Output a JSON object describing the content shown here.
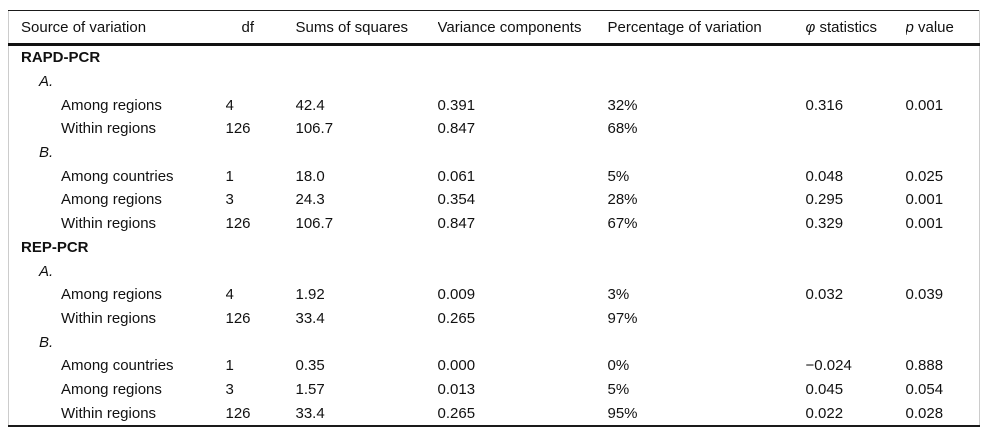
{
  "colors": {
    "background": "#ffffff",
    "text": "#111111",
    "rule": "#1a1a1a",
    "frame": "#cccccc"
  },
  "table": {
    "columns": [
      {
        "label": "Source of variation"
      },
      {
        "label": "df"
      },
      {
        "label": "Sums of squares"
      },
      {
        "label": "Variance components"
      },
      {
        "label": "Percentage of variation"
      },
      {
        "symbol": "φ",
        "label": " statistics"
      },
      {
        "symbol": "p",
        "label": " value"
      }
    ],
    "rows": [
      {
        "type": "section",
        "label": "RAPD-PCR",
        "df": "",
        "sums_of_squares": "",
        "variance_components": "",
        "percentage_of_variation": "",
        "phi_statistics": "",
        "p_value": ""
      },
      {
        "type": "subsection",
        "label": "A.",
        "df": "",
        "sums_of_squares": "",
        "variance_components": "",
        "percentage_of_variation": "",
        "phi_statistics": "",
        "p_value": ""
      },
      {
        "type": "data",
        "label": "Among regions",
        "df": "4",
        "sums_of_squares": "42.4",
        "variance_components": "0.391",
        "percentage_of_variation": "32%",
        "phi_statistics": "0.316",
        "p_value": "0.001"
      },
      {
        "type": "data",
        "label": "Within regions",
        "df": "126",
        "sums_of_squares": "106.7",
        "variance_components": "0.847",
        "percentage_of_variation": "68%",
        "phi_statistics": "",
        "p_value": ""
      },
      {
        "type": "subsection",
        "label": "B.",
        "df": "",
        "sums_of_squares": "",
        "variance_components": "",
        "percentage_of_variation": "",
        "phi_statistics": "",
        "p_value": ""
      },
      {
        "type": "data",
        "label": "Among countries",
        "df": "1",
        "sums_of_squares": "18.0",
        "variance_components": "0.061",
        "percentage_of_variation": "5%",
        "phi_statistics": "0.048",
        "p_value": "0.025"
      },
      {
        "type": "data",
        "label": "Among regions",
        "df": "3",
        "sums_of_squares": "24.3",
        "variance_components": "0.354",
        "percentage_of_variation": "28%",
        "phi_statistics": "0.295",
        "p_value": "0.001"
      },
      {
        "type": "data",
        "label": "Within regions",
        "df": "126",
        "sums_of_squares": "106.7",
        "variance_components": "0.847",
        "percentage_of_variation": "67%",
        "phi_statistics": "0.329",
        "p_value": "0.001"
      },
      {
        "type": "section",
        "label": "REP-PCR",
        "df": "",
        "sums_of_squares": "",
        "variance_components": "",
        "percentage_of_variation": "",
        "phi_statistics": "",
        "p_value": ""
      },
      {
        "type": "subsection",
        "label": "A.",
        "df": "",
        "sums_of_squares": "",
        "variance_components": "",
        "percentage_of_variation": "",
        "phi_statistics": "",
        "p_value": ""
      },
      {
        "type": "data",
        "label": "Among regions",
        "df": "4",
        "sums_of_squares": "1.92",
        "variance_components": "0.009",
        "percentage_of_variation": "3%",
        "phi_statistics": "0.032",
        "p_value": "0.039"
      },
      {
        "type": "data",
        "label": "Within regions",
        "df": "126",
        "sums_of_squares": "33.4",
        "variance_components": "0.265",
        "percentage_of_variation": "97%",
        "phi_statistics": "",
        "p_value": ""
      },
      {
        "type": "subsection",
        "label": "B.",
        "df": "",
        "sums_of_squares": "",
        "variance_components": "",
        "percentage_of_variation": "",
        "phi_statistics": "",
        "p_value": ""
      },
      {
        "type": "data",
        "label": "Among countries",
        "df": "1",
        "sums_of_squares": "0.35",
        "variance_components": "0.000",
        "percentage_of_variation": "0%",
        "phi_statistics": "−0.024",
        "p_value": "0.888"
      },
      {
        "type": "data",
        "label": "Among regions",
        "df": "3",
        "sums_of_squares": "1.57",
        "variance_components": "0.013",
        "percentage_of_variation": "5%",
        "phi_statistics": "0.045",
        "p_value": "0.054"
      },
      {
        "type": "data",
        "label": "Within regions",
        "df": "126",
        "sums_of_squares": "33.4",
        "variance_components": "0.265",
        "percentage_of_variation": "95%",
        "phi_statistics": "0.022",
        "p_value": "0.028"
      }
    ]
  }
}
